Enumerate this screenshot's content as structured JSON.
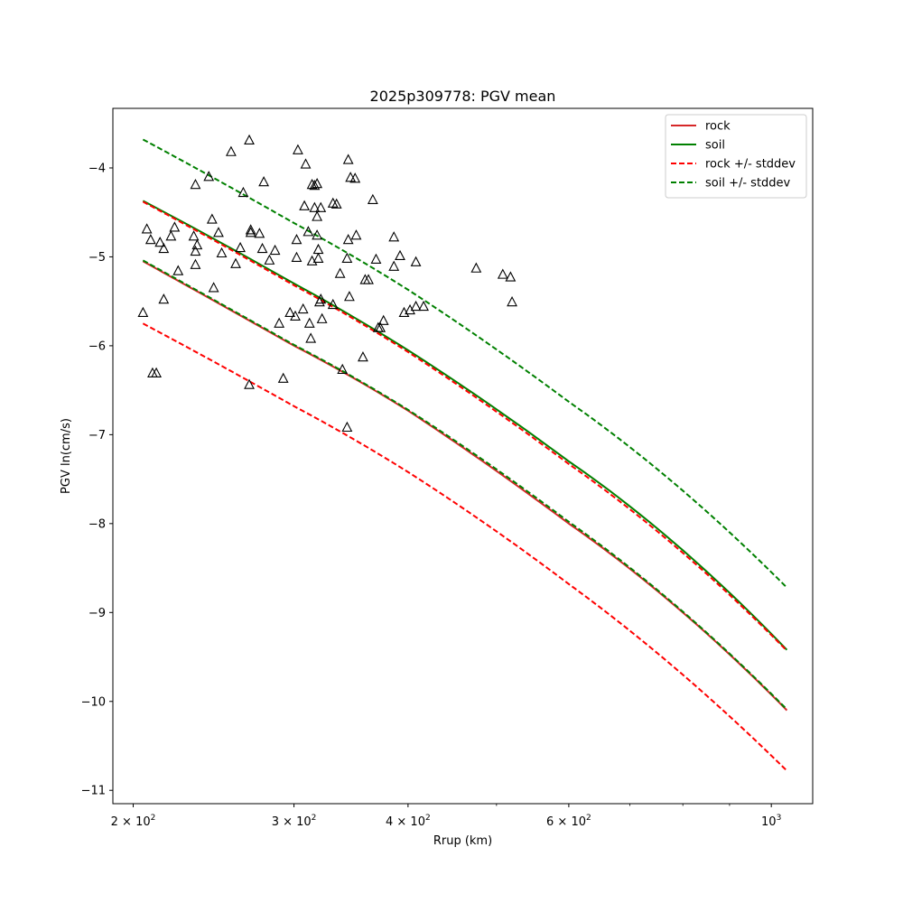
{
  "chart_data": {
    "type": "scatter",
    "title": "2025p309778: PGV mean",
    "xlabel": "Rrup (km)",
    "ylabel": "PGV ln(cm/s)",
    "xscale": "log",
    "xlim": [
      190,
      1110
    ],
    "ylim": [
      -11.15,
      -3.33
    ],
    "x_ticks": [
      {
        "value": 200,
        "base": "2",
        "exp": "2"
      },
      {
        "value": 300,
        "base": "3",
        "exp": "2"
      },
      {
        "value": 400,
        "base": "4",
        "exp": "2"
      },
      {
        "value": 600,
        "base": "6",
        "exp": "2"
      },
      {
        "value": 1000,
        "base": "",
        "exp": "3"
      }
    ],
    "y_ticks": [
      -11,
      -10,
      -9,
      -8,
      -7,
      -6,
      -5,
      -4
    ],
    "y_tick_labels": [
      "−11",
      "−10",
      "−9",
      "−8",
      "−7",
      "−6",
      "−5",
      "−4"
    ],
    "legend_position": "top-right",
    "grid": false,
    "series": [
      {
        "name": "rock",
        "color": "#d62728",
        "style": "solid",
        "x": [
          205,
          300,
          400,
          600,
          800,
          1040
        ],
        "y": [
          -5.05,
          -6.0,
          -6.73,
          -8.0,
          -9.0,
          -10.1
        ]
      },
      {
        "name": "soil",
        "color": "#008000",
        "style": "solid",
        "x": [
          205,
          300,
          400,
          600,
          800,
          1040
        ],
        "y": [
          -4.37,
          -5.3,
          -6.05,
          -7.3,
          -8.3,
          -9.42
        ]
      },
      {
        "name": "rock +/- stddev",
        "color": "#ff0000",
        "style": "dashed",
        "x": [
          205,
          300,
          400,
          600,
          800,
          1040
        ],
        "y": [
          -4.38,
          -5.32,
          -6.07,
          -7.33,
          -8.33,
          -9.43
        ]
      },
      {
        "name": "rock +/- stddev",
        "color": "#ff0000",
        "style": "dashed",
        "legend": false,
        "x": [
          205,
          300,
          400,
          600,
          800,
          1040
        ],
        "y": [
          -5.75,
          -6.68,
          -7.42,
          -8.68,
          -9.7,
          -10.78
        ]
      },
      {
        "name": "soil +/- stddev",
        "color": "#008000",
        "style": "dashed",
        "x": [
          205,
          300,
          400,
          600,
          800,
          1040
        ],
        "y": [
          -3.68,
          -4.62,
          -5.37,
          -6.63,
          -7.63,
          -8.72
        ]
      },
      {
        "name": "soil +/- stddev",
        "color": "#008000",
        "style": "dashed",
        "legend": false,
        "x": [
          205,
          300,
          400,
          600,
          800,
          1040
        ],
        "y": [
          -5.04,
          -5.99,
          -6.72,
          -7.98,
          -8.99,
          -10.09
        ]
      }
    ],
    "observations": {
      "marker": "triangle",
      "color": "#000000",
      "points": [
        [
          205,
          -5.63
        ],
        [
          207,
          -4.69
        ],
        [
          209,
          -4.81
        ],
        [
          210,
          -6.31
        ],
        [
          212,
          -6.31
        ],
        [
          214,
          -4.84
        ],
        [
          216,
          -4.91
        ],
        [
          216,
          -5.48
        ],
        [
          220,
          -4.77
        ],
        [
          222,
          -4.67
        ],
        [
          224,
          -5.16
        ],
        [
          233,
          -4.77
        ],
        [
          234,
          -5.09
        ],
        [
          234,
          -4.19
        ],
        [
          234,
          -4.94
        ],
        [
          235,
          -4.87
        ],
        [
          242,
          -4.1
        ],
        [
          244,
          -4.58
        ],
        [
          245,
          -5.35
        ],
        [
          248,
          -4.73
        ],
        [
          250,
          -4.96
        ],
        [
          256,
          -3.82
        ],
        [
          259,
          -5.08
        ],
        [
          262,
          -4.9
        ],
        [
          264,
          -4.28
        ],
        [
          268,
          -6.44
        ],
        [
          268,
          -3.69
        ],
        [
          269,
          -4.7
        ],
        [
          269,
          -4.73
        ],
        [
          275,
          -4.74
        ],
        [
          277,
          -4.91
        ],
        [
          278,
          -4.16
        ],
        [
          282,
          -5.04
        ],
        [
          286,
          -4.93
        ],
        [
          289,
          -5.75
        ],
        [
          292,
          -6.37
        ],
        [
          297,
          -5.63
        ],
        [
          301,
          -5.67
        ],
        [
          302,
          -5.01
        ],
        [
          302,
          -4.81
        ],
        [
          303,
          -3.8
        ],
        [
          307,
          -5.59
        ],
        [
          308,
          -4.43
        ],
        [
          309,
          -3.96
        ],
        [
          311,
          -4.72
        ],
        [
          312,
          -5.75
        ],
        [
          313,
          -5.92
        ],
        [
          314,
          -4.19
        ],
        [
          314,
          -5.05
        ],
        [
          316,
          -4.45
        ],
        [
          316,
          -4.2
        ],
        [
          318,
          -4.55
        ],
        [
          318,
          -4.18
        ],
        [
          318,
          -4.76
        ],
        [
          319,
          -5.02
        ],
        [
          319,
          -4.92
        ],
        [
          320,
          -5.51
        ],
        [
          321,
          -5.48
        ],
        [
          321,
          -4.45
        ],
        [
          322,
          -5.7
        ],
        [
          331,
          -5.54
        ],
        [
          331,
          -4.4
        ],
        [
          334,
          -4.41
        ],
        [
          337,
          -5.19
        ],
        [
          339,
          -6.27
        ],
        [
          343,
          -5.02
        ],
        [
          343,
          -6.92
        ],
        [
          344,
          -4.81
        ],
        [
          344,
          -3.91
        ],
        [
          345,
          -5.45
        ],
        [
          346,
          -4.11
        ],
        [
          350,
          -4.12
        ],
        [
          351,
          -4.76
        ],
        [
          357,
          -6.13
        ],
        [
          359,
          -5.26
        ],
        [
          362,
          -5.26
        ],
        [
          366,
          -4.36
        ],
        [
          369,
          -5.03
        ],
        [
          371,
          -5.8
        ],
        [
          373,
          -5.8
        ],
        [
          376,
          -5.72
        ],
        [
          386,
          -4.78
        ],
        [
          386,
          -5.11
        ],
        [
          392,
          -4.99
        ],
        [
          396,
          -5.63
        ],
        [
          402,
          -5.6
        ],
        [
          408,
          -5.56
        ],
        [
          408,
          -5.06
        ],
        [
          416,
          -5.56
        ],
        [
          475,
          -5.13
        ],
        [
          508,
          -5.2
        ],
        [
          518,
          -5.23
        ],
        [
          520,
          -5.51
        ]
      ]
    }
  }
}
